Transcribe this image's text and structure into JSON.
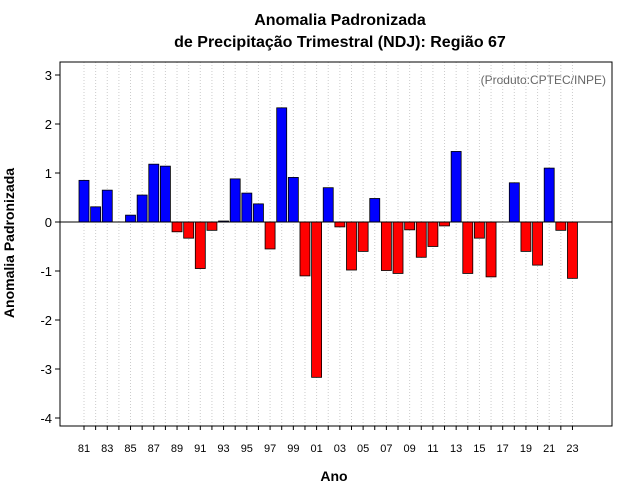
{
  "chart_data": {
    "type": "bar",
    "title": "Anomalia Padronizada",
    "subtitle": "de Precipitação Trimestral (NDJ): Região 67",
    "xlabel": "Ano",
    "ylabel": "Anomalia Padronizada",
    "credit": "(Produto:CPTEC/INPE)",
    "ylim": [
      -4.2,
      3.3
    ],
    "yticks": [
      -4,
      -3,
      -2,
      -1,
      0,
      1,
      2,
      3
    ],
    "xtick_labels": [
      "81",
      "83",
      "85",
      "87",
      "89",
      "91",
      "93",
      "95",
      "97",
      "99",
      "01",
      "03",
      "05",
      "07",
      "09",
      "11",
      "13",
      "15",
      "17",
      "19",
      "21",
      "23"
    ],
    "grid": "vertical dotted",
    "colors": {
      "positive": "#0000ff",
      "negative": "#ff0000",
      "grid": "#cccccc",
      "axis": "#000000"
    },
    "categories": [
      "81",
      "82",
      "83",
      "84",
      "85",
      "86",
      "87",
      "88",
      "89",
      "90",
      "91",
      "92",
      "93",
      "94",
      "95",
      "96",
      "97",
      "98",
      "99",
      "00",
      "01",
      "02",
      "03",
      "04",
      "05",
      "06",
      "07",
      "08",
      "09",
      "10",
      "11",
      "12",
      "13",
      "14",
      "15",
      "16",
      "17",
      "18",
      "19",
      "20",
      "21",
      "22",
      "23"
    ],
    "values": [
      0.85,
      0.31,
      0.65,
      0.0,
      0.14,
      0.55,
      1.18,
      1.14,
      -0.2,
      -0.33,
      -0.95,
      -0.17,
      0.02,
      0.88,
      0.59,
      0.37,
      -0.55,
      2.33,
      0.91,
      -1.1,
      -3.17,
      0.7,
      -0.1,
      -0.98,
      -0.6,
      0.48,
      -0.99,
      -1.05,
      -0.16,
      -0.72,
      -0.5,
      -0.08,
      1.44,
      -1.05,
      -0.33,
      -1.12,
      0.0,
      0.8,
      -0.6,
      -0.88,
      1.1,
      -0.17,
      -1.15
    ]
  }
}
